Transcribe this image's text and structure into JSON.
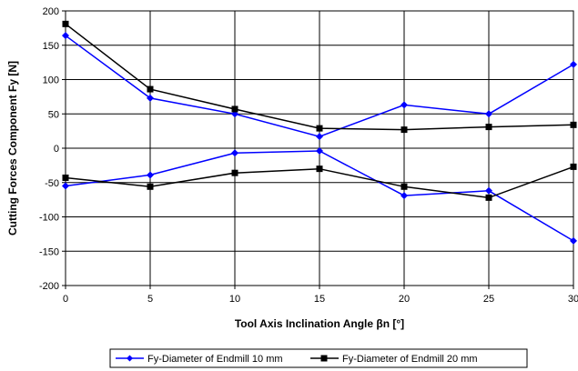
{
  "chart_data": {
    "type": "line",
    "xlabel": "Tool Axis Inclination Angle βn [°]",
    "ylabel": "Cutting Forces Component Fy  [N]",
    "xlim": [
      0,
      30
    ],
    "ylim": [
      -200,
      200
    ],
    "x_ticks": [
      "0",
      "5",
      "10",
      "15",
      "20",
      "25",
      "30"
    ],
    "y_ticks": [
      "200",
      "150",
      "100",
      "50",
      "0",
      "-50",
      "-100",
      "-150",
      "-200"
    ],
    "grid": true,
    "legend_position": "bottom",
    "series": [
      {
        "name": "Fy-Diameter of Endmill 10 mm",
        "color": "#0000ff",
        "marker": "diamond",
        "lines": [
          {
            "x": [
              0,
              5,
              10,
              15,
              20,
              25,
              30
            ],
            "y": [
              164,
              73,
              50,
              17,
              63,
              50,
              122
            ]
          },
          {
            "x": [
              0,
              5,
              10,
              15,
              20,
              25,
              30
            ],
            "y": [
              -55,
              -39,
              -7,
              -4,
              -69,
              -62,
              -135
            ]
          }
        ]
      },
      {
        "name": "Fy-Diameter of Endmill 20 mm",
        "color": "#000000",
        "marker": "square",
        "lines": [
          {
            "x": [
              0,
              5,
              10,
              15,
              20,
              25,
              30
            ],
            "y": [
              181,
              86,
              57,
              29,
              27,
              31,
              34
            ]
          },
          {
            "x": [
              0,
              5,
              10,
              15,
              20,
              25,
              30
            ],
            "y": [
              -43,
              -56,
              -36,
              -30,
              -56,
              -72,
              -27
            ]
          }
        ]
      }
    ]
  }
}
